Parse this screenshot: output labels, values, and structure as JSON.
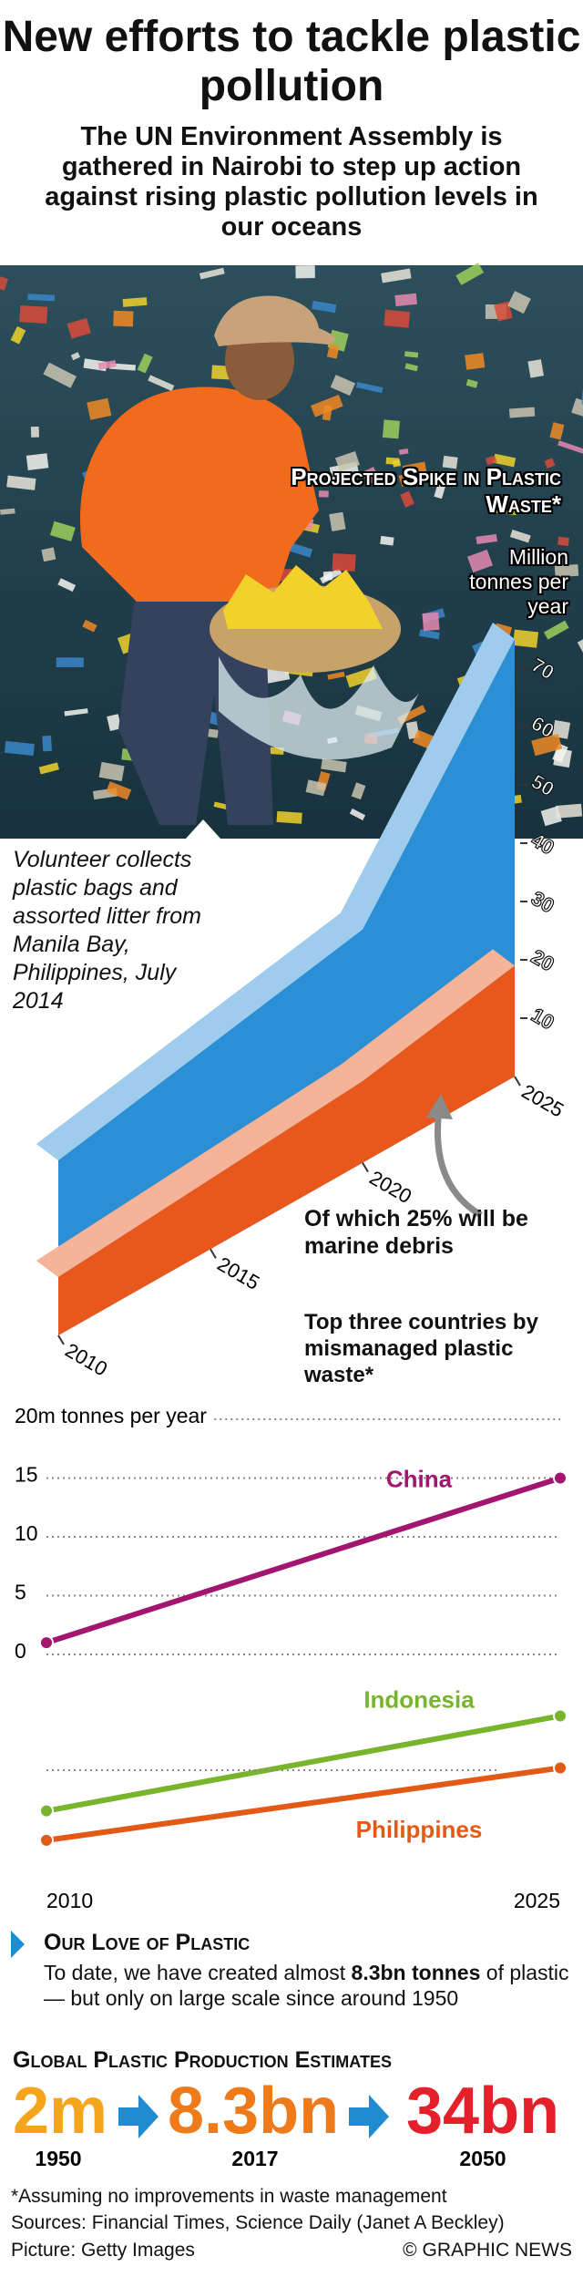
{
  "title": "New efforts to tackle plastic pollution",
  "subtitle": "The UN Environment Assembly is gathered in Nairobi to step up action against rising plastic pollution levels in our oceans",
  "photo_caption": "Volunteer collects plastic bags and assorted litter from Manila Bay, Philippines, July 2014",
  "chart_data": [
    {
      "type": "area3d",
      "title": "Projected Spike in Plastic Waste*",
      "y_label": "Million tonnes per year",
      "x": [
        2010,
        2015,
        2020,
        2025
      ],
      "xticks": [
        2010,
        2015,
        2020,
        2025
      ],
      "ylim": [
        0,
        80
      ],
      "yticks": [
        10,
        20,
        30,
        40,
        50,
        60,
        70
      ],
      "series": [
        {
          "color": "#2b8fd6",
          "values": [
            30,
            35,
            40,
            75
          ]
        },
        {
          "color": "#e8571c",
          "values": [
            10,
            12,
            14,
            19
          ]
        }
      ],
      "annotation": "Of which 25% will be marine debris"
    },
    {
      "type": "line",
      "title": "Top three countries by mismanaged plastic waste*",
      "x": [
        2010,
        2025
      ],
      "xticks": [
        2010,
        2025
      ],
      "ylim": [
        0,
        20
      ],
      "yticks": [
        {
          "value": 20,
          "label": "20m tonnes per year"
        },
        15,
        10,
        5,
        0
      ],
      "grid": true,
      "series": [
        {
          "name": "China",
          "color": "#a3166f",
          "values": [
            1,
            15
          ]
        }
      ]
    },
    {
      "type": "line",
      "x": [
        2010,
        2025
      ],
      "ylim": [
        0,
        7.5
      ],
      "series": [
        {
          "name": "Indonesia",
          "color": "#78b52c",
          "values": [
            3.2,
            7.4
          ]
        },
        {
          "name": "Philippines",
          "color": "#e35a16",
          "values": [
            1.9,
            5.1
          ]
        }
      ]
    }
  ],
  "love": {
    "heading": "Our Love of Plastic",
    "text": [
      "To date, we have created almost ",
      "8.3bn tonnes",
      " of plastic — but only on large scale since around 1950"
    ]
  },
  "production": {
    "title": "Global Plastic Production Estimates",
    "items": [
      {
        "amount": "2m",
        "year": "1950",
        "color": "#f4a51c"
      },
      {
        "amount": "8.3bn",
        "year": "2017",
        "color": "#ef7a1a"
      },
      {
        "amount": "34bn",
        "year": "2050",
        "color": "#e4212b"
      }
    ]
  },
  "footnote": "*Assuming no improvements in waste management",
  "sources": "Sources: Financial Times, Science Daily (Janet A Beckley)",
  "picture_credit": "Picture: Getty Images",
  "copyright": "© GRAPHIC NEWS"
}
